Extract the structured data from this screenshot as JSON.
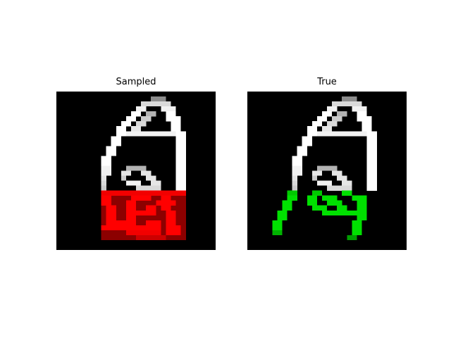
{
  "panels": [
    {
      "title": "Sampled",
      "overlay_color": "#ff0000",
      "overlay_start_row": 20
    },
    {
      "title": "True",
      "overlay_color": "#00e000",
      "overlay_start_row": 20
    }
  ],
  "image_grid": {
    "rows": 32,
    "cols": 32,
    "background_color": "#000000",
    "stroke_color": "#ffffff"
  }
}
